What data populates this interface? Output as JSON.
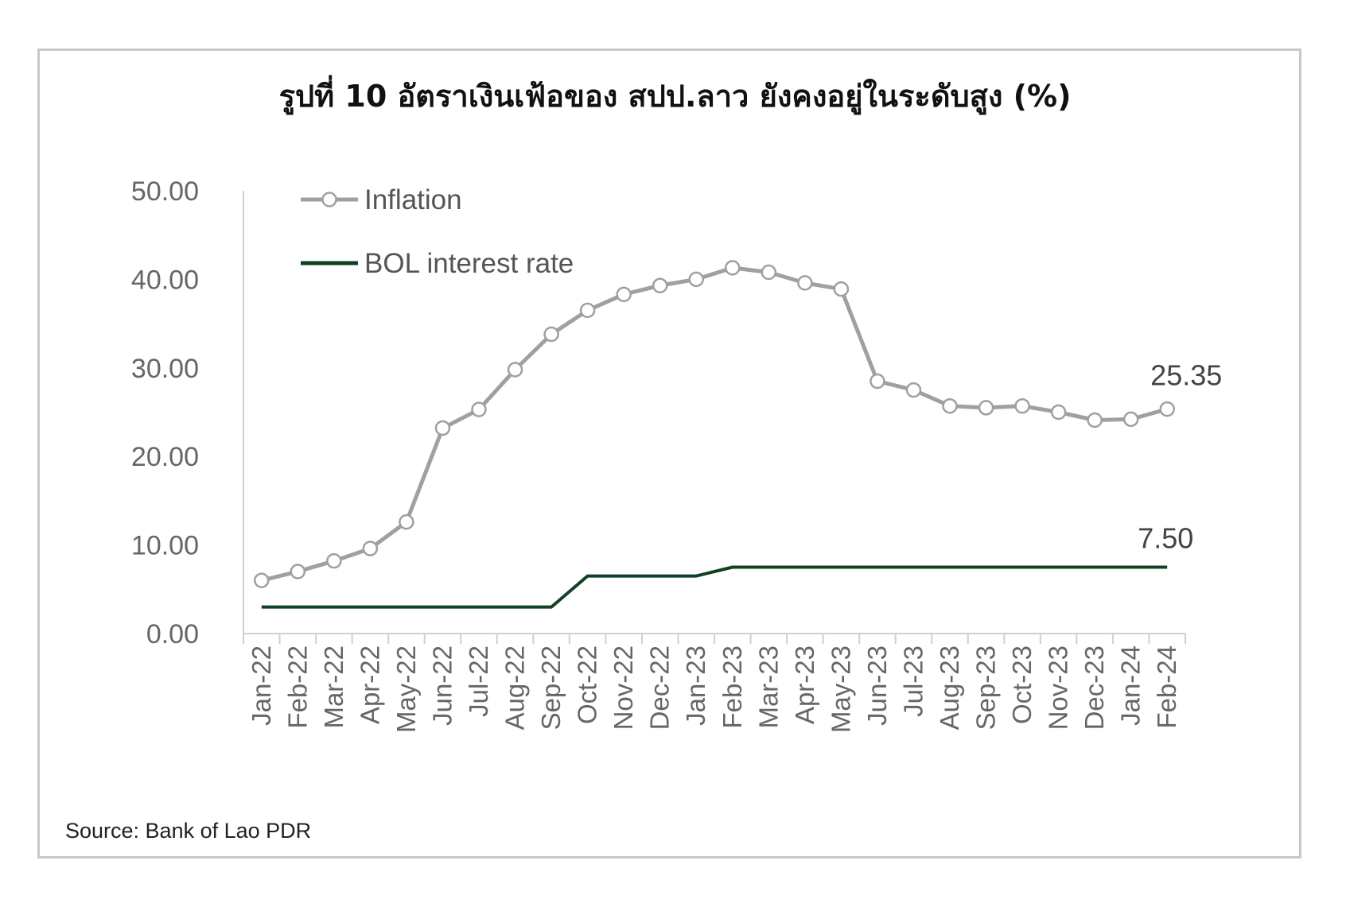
{
  "chart_data": {
    "type": "line",
    "title": "รูปที่ 10 อัตราเงินเฟ้อของ สปป.ลาว ยังคงอยู่ในระดับสูง (%)",
    "xlabel": "",
    "ylabel": "",
    "ylim": [
      0,
      50
    ],
    "yticks": [
      "0.00",
      "10.00",
      "20.00",
      "30.00",
      "40.00",
      "50.00"
    ],
    "ytick_values": [
      0,
      10,
      20,
      30,
      40,
      50
    ],
    "grid": false,
    "legend_position": "top-left",
    "categories": [
      "Jan-22",
      "Feb-22",
      "Mar-22",
      "Apr-22",
      "May-22",
      "Jun-22",
      "Jul-22",
      "Aug-22",
      "Sep-22",
      "Oct-22",
      "Nov-22",
      "Dec-22",
      "Jan-23",
      "Feb-23",
      "Mar-23",
      "Apr-23",
      "May-23",
      "Jun-23",
      "Jul-23",
      "Aug-23",
      "Sep-23",
      "Oct-23",
      "Nov-23",
      "Dec-23",
      "Jan-24",
      "Feb-24"
    ],
    "series": [
      {
        "name": "Inflation",
        "color": "#a0a0a0",
        "marker": "open-circle",
        "values": [
          6.0,
          7.0,
          8.2,
          9.6,
          12.6,
          23.2,
          25.3,
          29.8,
          33.8,
          36.5,
          38.3,
          39.3,
          40.0,
          41.3,
          40.8,
          39.6,
          38.9,
          28.5,
          27.5,
          25.7,
          25.5,
          25.7,
          25.0,
          24.1,
          24.2,
          25.35
        ],
        "end_label": "25.35"
      },
      {
        "name": "BOL interest rate",
        "color": "#0f4125",
        "marker": "none",
        "values": [
          3.0,
          3.0,
          3.0,
          3.0,
          3.0,
          3.0,
          3.0,
          3.0,
          3.0,
          6.5,
          6.5,
          6.5,
          6.5,
          7.5,
          7.5,
          7.5,
          7.5,
          7.5,
          7.5,
          7.5,
          7.5,
          7.5,
          7.5,
          7.5,
          7.5,
          7.5
        ],
        "end_label": "7.50"
      }
    ]
  },
  "source_note": "Source: Bank of Lao PDR"
}
